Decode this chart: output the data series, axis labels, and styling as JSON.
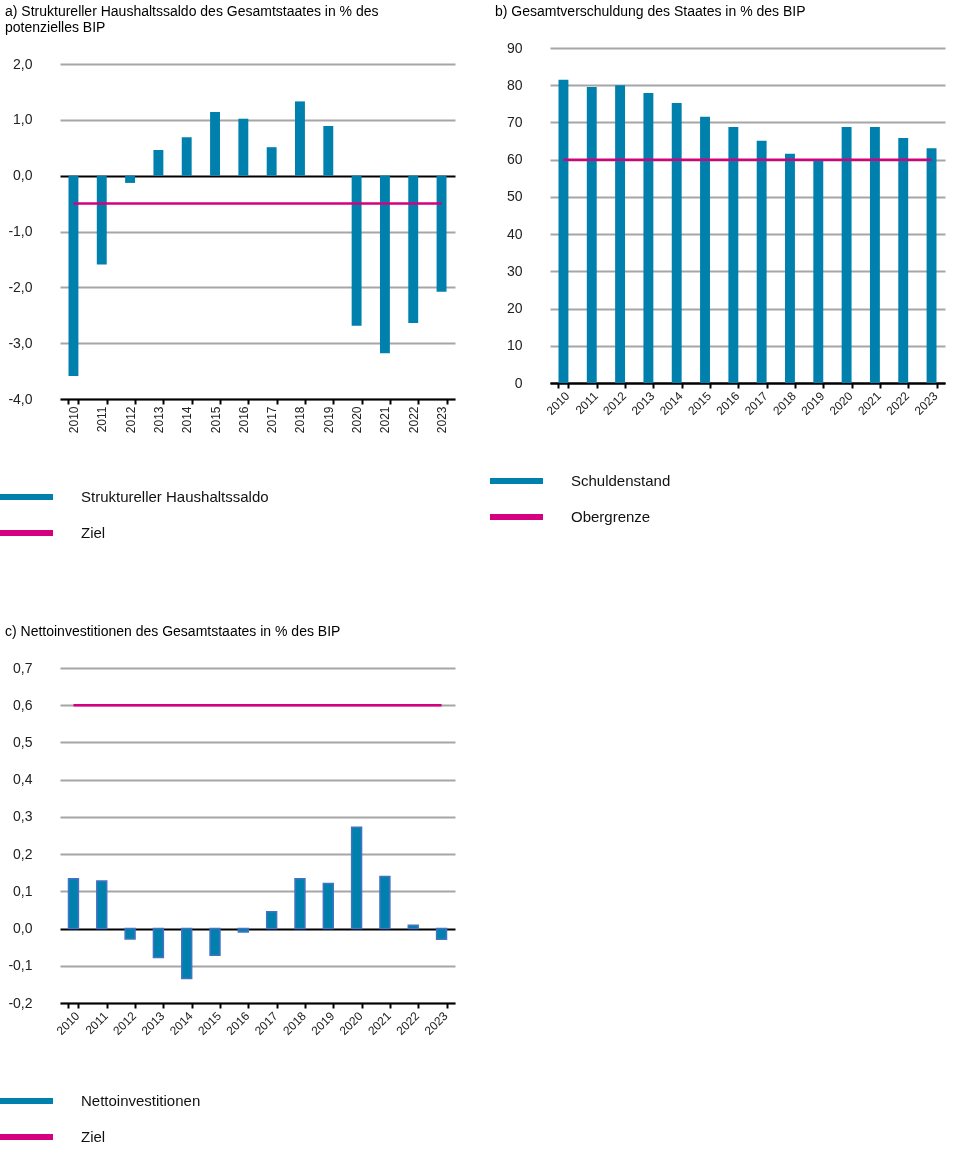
{
  "chart_data": [
    {
      "type": "bar",
      "title": "a) Struktureller Haushaltssaldo des Gesamtstaates in % des potenzielles BIP",
      "categories": [
        "2010",
        "2011",
        "2012",
        "2013",
        "2014",
        "2015",
        "2016",
        "2017",
        "2018",
        "2019",
        "2020",
        "2021",
        "2022",
        "2023"
      ],
      "series": [
        {
          "name": "Struktureller Haushaltssaldo",
          "color": "#0080ad",
          "values": [
            -3.59,
            -1.59,
            -0.13,
            0.46,
            0.69,
            1.14,
            1.02,
            0.51,
            1.33,
            0.89,
            -2.69,
            -3.18,
            -2.64,
            -2.08
          ]
        }
      ],
      "ref_lines": [
        {
          "axis": "y",
          "value": -0.5,
          "label": "Ziel",
          "color": "#d4007f"
        }
      ],
      "ylim": [
        -4,
        2
      ],
      "yticks": [
        {
          "value": -4,
          "label": "-4,0"
        },
        {
          "value": -3,
          "label": "-3,0"
        },
        {
          "value": -2,
          "label": "-2,0"
        },
        {
          "value": -1,
          "label": "-1,0"
        },
        {
          "value": 0,
          "label": "0,0"
        },
        {
          "value": 1,
          "label": "1,0"
        },
        {
          "value": 2,
          "label": "2,0"
        }
      ],
      "grid": "y",
      "legend": "bottom"
    },
    {
      "type": "bar",
      "title": "b) Gesamtverschuldung des Staates in % des BIP",
      "categories": [
        "2010",
        "2011",
        "2012",
        "2013",
        "2014",
        "2015",
        "2016",
        "2017",
        "2018",
        "2019",
        "2020",
        "2021",
        "2022",
        "2023"
      ],
      "series": [
        {
          "name": "Schuldenstand",
          "color": "#0080ad",
          "values": [
            81.5,
            79.5,
            80.0,
            77.9,
            75.2,
            71.5,
            68.8,
            65.1,
            61.6,
            59.8,
            68.8,
            68.8,
            65.8,
            63.1
          ]
        }
      ],
      "ref_lines": [
        {
          "axis": "y",
          "value": 60,
          "label": "Obergrenze",
          "color": "#d4007f"
        }
      ],
      "ylim": [
        0,
        90
      ],
      "yticks": [
        0,
        10,
        20,
        30,
        40,
        50,
        60,
        70,
        80,
        90
      ],
      "grid": "y",
      "legend": "bottom"
    },
    {
      "type": "bar",
      "title": "c) Nettoinvestitionen des Gesamtstaates in % des BIP",
      "categories": [
        "2010",
        "2011",
        "2012",
        "2013",
        "2014",
        "2015",
        "2016",
        "2017",
        "2018",
        "2019",
        "2020",
        "2021",
        "2022",
        "2023"
      ],
      "series": [
        {
          "name": "Nettoinvestitionen",
          "color": "#0080ad",
          "values": [
            0.134,
            0.128,
            -0.028,
            -0.078,
            -0.134,
            -0.072,
            -0.009,
            0.045,
            0.134,
            0.121,
            0.272,
            0.14,
            0.009,
            -0.029
          ]
        }
      ],
      "ref_lines": [
        {
          "axis": "y",
          "value": 0.6,
          "label": "Ziel",
          "color": "#d4007f"
        }
      ],
      "ylim": [
        -0.2,
        0.7
      ],
      "yticks": [
        {
          "value": -0.2,
          "label": "-0,2"
        },
        {
          "value": -0.1,
          "label": "-0,1"
        },
        {
          "value": 0,
          "label": "0,0"
        },
        {
          "value": 0.1,
          "label": "0,1"
        },
        {
          "value": 0.2,
          "label": "0,2"
        },
        {
          "value": 0.3,
          "label": "0,3"
        },
        {
          "value": 0.4,
          "label": "0,4"
        },
        {
          "value": 0.5,
          "label": "0,5"
        },
        {
          "value": 0.6,
          "label": "0,6"
        },
        {
          "value": 0.7,
          "label": "0,7"
        }
      ],
      "grid": "y",
      "legend": "bottom"
    }
  ]
}
